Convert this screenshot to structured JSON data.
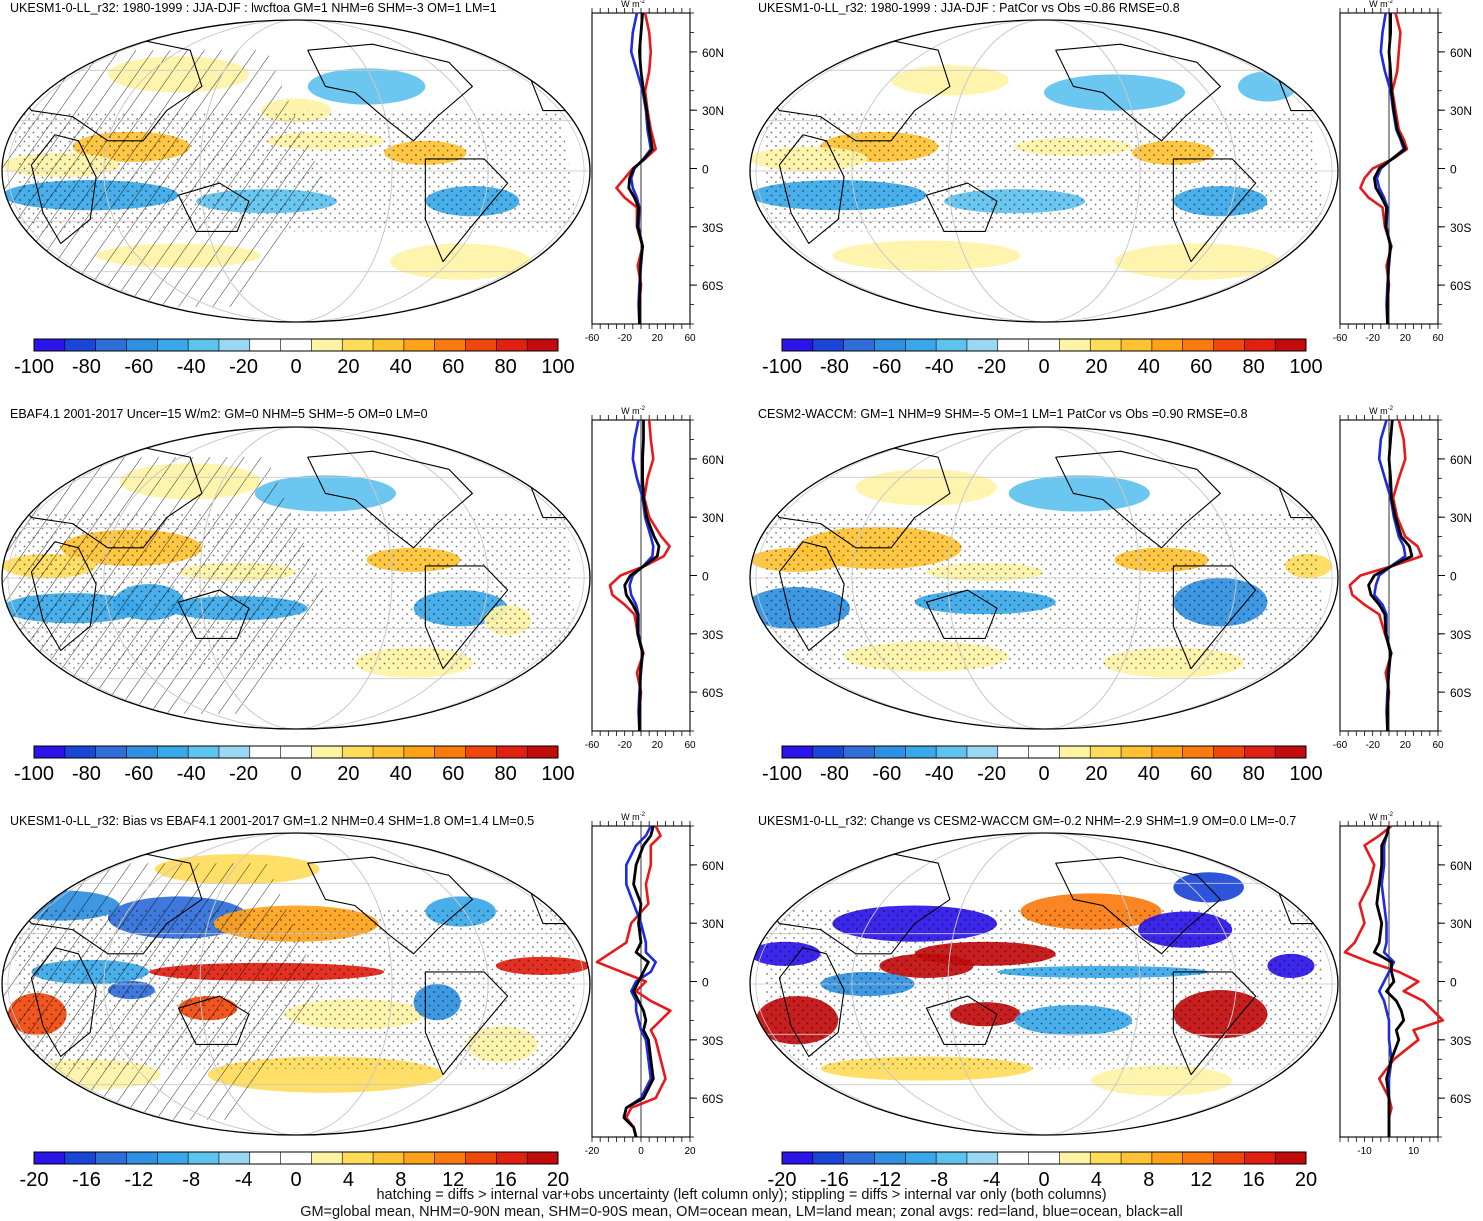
{
  "footer": {
    "line1": "hatching = diffs > internal var+obs uncertainty (left column only); stippling = diffs > internal var only (both columns)",
    "line2": "GM=global mean, NHM=0-90N mean, SHM=0-90S mean, OM=ocean mean, LM=land mean; zonal avgs: red=land, blue=ocean, black=all"
  },
  "units_label": "W m",
  "units_exp": "-2",
  "colors": {
    "land": "#e8191c",
    "ocean": "#1f2be0",
    "all": "#000000",
    "colorbar_ramp": [
      "#2a14e8",
      "#1a46d8",
      "#2f6ed8",
      "#2f8fe0",
      "#3aa8e8",
      "#5ec2ee",
      "#9ad8f2",
      "#ffffff",
      "#ffffff",
      "#fff3a6",
      "#ffdc5a",
      "#ffc234",
      "#ffa21a",
      "#fb7a10",
      "#f0480c",
      "#e02010",
      "#c20c0c"
    ]
  },
  "panels": [
    {
      "id": "p1",
      "title": "UKESM1-0-LL_r32: 1980-1999 : JJA-DJF : lwcftoa GM=1 NHM=6 SHM=-3 OM=1 LM=1",
      "hatching": true,
      "colorbar": {
        "ticks": [
          "-100",
          "-80",
          "-60",
          "-40",
          "-20",
          "0",
          "20",
          "40",
          "60",
          "80",
          "100"
        ],
        "range": [
          -100,
          100
        ]
      },
      "zonal": {
        "x_ticks": [
          "-60",
          "-20",
          "20",
          "60"
        ],
        "x_range": [
          -60,
          60
        ],
        "lat_range": [
          -80,
          80
        ],
        "lat_ticks": [
          {
            "v": 60,
            "label": "60N"
          },
          {
            "v": 30,
            "label": "30N"
          },
          {
            "v": 0,
            "label": "0"
          },
          {
            "v": -30,
            "label": "30S"
          },
          {
            "v": -60,
            "label": "60S"
          }
        ],
        "lat": [
          80,
          70,
          60,
          50,
          40,
          30,
          20,
          15,
          10,
          5,
          0,
          -5,
          -10,
          -15,
          -20,
          -30,
          -40,
          -50,
          -60,
          -70,
          -80
        ],
        "land": [
          5,
          10,
          12,
          10,
          5,
          8,
          12,
          15,
          18,
          5,
          -10,
          -20,
          -30,
          -20,
          -5,
          -5,
          2,
          -4,
          0,
          -2,
          -2
        ],
        "ocean": [
          -5,
          -10,
          -12,
          -5,
          2,
          6,
          8,
          10,
          12,
          3,
          -8,
          -12,
          -10,
          -5,
          -2,
          -3,
          2,
          0,
          -2,
          -3,
          -2
        ],
        "all": [
          2,
          0,
          -2,
          0,
          3,
          7,
          10,
          12,
          14,
          4,
          -9,
          -14,
          -15,
          -8,
          -3,
          -4,
          2,
          -1,
          -1,
          -2,
          -2
        ]
      }
    },
    {
      "id": "p2",
      "title": "UKESM1-0-LL_r32: 1980-1999 : JJA-DJF : PatCor vs Obs =0.86 RMSE=0.8",
      "hatching": false,
      "colorbar": {
        "ticks": [
          "-100",
          "-80",
          "-60",
          "-40",
          "-20",
          "0",
          "20",
          "40",
          "60",
          "80",
          "100"
        ],
        "range": [
          -100,
          100
        ]
      },
      "zonal": {
        "x_ticks": [
          "-60",
          "-20",
          "20",
          "60"
        ],
        "x_range": [
          -60,
          60
        ],
        "lat_range": [
          -80,
          80
        ],
        "lat_ticks": [
          {
            "v": 60,
            "label": "60N"
          },
          {
            "v": 30,
            "label": "30N"
          },
          {
            "v": 0,
            "label": "0"
          },
          {
            "v": -30,
            "label": "30S"
          },
          {
            "v": -60,
            "label": "60S"
          }
        ],
        "lat": [
          80,
          70,
          60,
          50,
          40,
          30,
          20,
          15,
          10,
          5,
          0,
          -5,
          -10,
          -15,
          -20,
          -30,
          -40,
          -50,
          -60,
          -70,
          -80
        ],
        "land": [
          8,
          14,
          12,
          10,
          4,
          8,
          12,
          18,
          22,
          5,
          -20,
          -30,
          -35,
          -25,
          -8,
          -5,
          3,
          -3,
          0,
          -2,
          -2
        ],
        "ocean": [
          -4,
          -8,
          -10,
          -5,
          2,
          5,
          9,
          14,
          18,
          4,
          -10,
          -15,
          -12,
          -6,
          -2,
          -3,
          2,
          0,
          -2,
          -3,
          -2
        ],
        "all": [
          2,
          2,
          0,
          2,
          3,
          6,
          10,
          15,
          20,
          4,
          -12,
          -18,
          -16,
          -9,
          -3,
          -4,
          2,
          -1,
          -1,
          -2,
          -2
        ]
      }
    },
    {
      "id": "p3",
      "title": "EBAF4.1 2001-2017 Uncer=15 W/m2: GM=0 NHM=5 SHM=-5 OM=0 LM=0",
      "hatching": true,
      "colorbar": {
        "ticks": [
          "-100",
          "-80",
          "-60",
          "-40",
          "-20",
          "0",
          "20",
          "40",
          "60",
          "80",
          "100"
        ],
        "range": [
          -100,
          100
        ]
      },
      "zonal": {
        "x_ticks": [
          "-60",
          "-20",
          "20",
          "60"
        ],
        "x_range": [
          -60,
          60
        ],
        "lat_range": [
          -80,
          80
        ],
        "lat_ticks": [
          {
            "v": 60,
            "label": "60N"
          },
          {
            "v": 30,
            "label": "30N"
          },
          {
            "v": 0,
            "label": "0"
          },
          {
            "v": -30,
            "label": "30S"
          },
          {
            "v": -60,
            "label": "60S"
          }
        ],
        "lat": [
          80,
          70,
          60,
          50,
          40,
          30,
          20,
          15,
          10,
          5,
          0,
          -5,
          -10,
          -15,
          -20,
          -30,
          -40,
          -50,
          -60,
          -70,
          -80
        ],
        "land": [
          10,
          12,
          15,
          8,
          4,
          10,
          25,
          35,
          28,
          5,
          -25,
          -38,
          -35,
          -20,
          -8,
          -4,
          3,
          -5,
          0,
          -2,
          -2
        ],
        "ocean": [
          -3,
          -8,
          -10,
          -5,
          2,
          5,
          12,
          15,
          14,
          3,
          -10,
          -14,
          -12,
          -6,
          -3,
          -3,
          2,
          0,
          -2,
          -3,
          -2
        ],
        "all": [
          3,
          3,
          2,
          2,
          3,
          7,
          16,
          22,
          20,
          4,
          -13,
          -20,
          -18,
          -10,
          -4,
          -4,
          2,
          -1,
          -1,
          -2,
          -2
        ]
      }
    },
    {
      "id": "p4",
      "title": "CESM2-WACCM: GM=1 NHM=9 SHM=-5 OM=1 LM=1 PatCor vs Obs =0.90 RMSE=0.8",
      "hatching": false,
      "colorbar": {
        "ticks": [
          "-100",
          "-80",
          "-60",
          "-40",
          "-20",
          "0",
          "20",
          "40",
          "60",
          "80",
          "100"
        ],
        "range": [
          -100,
          100
        ]
      },
      "zonal": {
        "x_ticks": [
          "-60",
          "-20",
          "20",
          "60"
        ],
        "x_range": [
          -60,
          60
        ],
        "lat_range": [
          -80,
          80
        ],
        "lat_ticks": [
          {
            "v": 60,
            "label": "60N"
          },
          {
            "v": 30,
            "label": "30N"
          },
          {
            "v": 0,
            "label": "0"
          },
          {
            "v": -30,
            "label": "30S"
          },
          {
            "v": -60,
            "label": "60S"
          }
        ],
        "lat": [
          80,
          70,
          60,
          50,
          40,
          30,
          20,
          15,
          10,
          5,
          0,
          -5,
          -10,
          -15,
          -20,
          -30,
          -40,
          -50,
          -60,
          -70,
          -80
        ],
        "land": [
          12,
          18,
          20,
          12,
          5,
          10,
          20,
          35,
          40,
          5,
          -35,
          -48,
          -45,
          -30,
          -12,
          -5,
          3,
          -4,
          0,
          -2,
          -2
        ],
        "ocean": [
          -3,
          -10,
          -12,
          -5,
          2,
          6,
          12,
          18,
          20,
          3,
          -12,
          -16,
          -18,
          -8,
          -3,
          -3,
          2,
          0,
          -2,
          -3,
          -2
        ],
        "all": [
          4,
          2,
          0,
          2,
          3,
          8,
          15,
          25,
          28,
          4,
          -18,
          -25,
          -22,
          -12,
          -5,
          -4,
          2,
          -1,
          -1,
          -2,
          -2
        ]
      }
    },
    {
      "id": "p5",
      "title": "UKESM1-0-LL_r32: Bias vs EBAF4.1 2001-2017 GM=1.2 NHM=0.4 SHM=1.8 OM=1.4 LM=0.5",
      "hatching": true,
      "colorbar": {
        "ticks": [
          "-20",
          "-16",
          "-12",
          "-8",
          "-4",
          "0",
          "4",
          "8",
          "12",
          "16",
          "20"
        ],
        "range": [
          -20,
          20
        ]
      },
      "zonal": {
        "x_ticks": [
          "-20",
          "0",
          "20"
        ],
        "x_range": [
          -20,
          20
        ],
        "lat_range": [
          -80,
          80
        ],
        "lat_ticks": [
          {
            "v": 60,
            "label": "60N"
          },
          {
            "v": 30,
            "label": "30N"
          },
          {
            "v": 0,
            "label": "0"
          },
          {
            "v": -30,
            "label": "30S"
          },
          {
            "v": -60,
            "label": "60S"
          }
        ],
        "lat": [
          80,
          75,
          70,
          60,
          50,
          40,
          30,
          20,
          15,
          10,
          5,
          0,
          -5,
          -10,
          -15,
          -20,
          -25,
          -30,
          -40,
          -50,
          -60,
          -65,
          -70,
          -75,
          -80
        ],
        "land": [
          6,
          8,
          4,
          4,
          2,
          3,
          -4,
          -6,
          -12,
          -18,
          -8,
          2,
          -2,
          4,
          12,
          8,
          4,
          6,
          8,
          10,
          6,
          -4,
          -6,
          -3,
          -2
        ],
        "ocean": [
          4,
          2,
          -2,
          -6,
          -6,
          -3,
          0,
          2,
          2,
          6,
          4,
          -2,
          -4,
          -2,
          -2,
          -1,
          0,
          2,
          3,
          4,
          0,
          -6,
          -7,
          -3,
          -2
        ],
        "all": [
          5,
          4,
          1,
          -2,
          -3,
          0,
          -1,
          0,
          -2,
          3,
          1,
          -1,
          -3,
          -1,
          1,
          2,
          1,
          3,
          4,
          5,
          1,
          -6,
          -7,
          -3,
          -2
        ]
      }
    },
    {
      "id": "p6",
      "title": "UKESM1-0-LL_r32: Change vs CESM2-WACCM GM=-0.2 NHM=-2.9 SHM=1.9 OM=0.0 LM=-0.7",
      "hatching": false,
      "colorbar": {
        "ticks": [
          "-20",
          "-16",
          "-12",
          "-8",
          "-4",
          "0",
          "4",
          "8",
          "12",
          "16",
          "20"
        ],
        "range": [
          -20,
          20
        ]
      },
      "zonal": {
        "x_ticks": [
          "-10",
          "10"
        ],
        "x_range": [
          -20,
          20
        ],
        "lat_range": [
          -80,
          80
        ],
        "lat_ticks": [
          {
            "v": 60,
            "label": "60N"
          },
          {
            "v": 30,
            "label": "30N"
          },
          {
            "v": 0,
            "label": "0"
          },
          {
            "v": -30,
            "label": "30S"
          },
          {
            "v": -60,
            "label": "60S"
          }
        ],
        "lat": [
          80,
          75,
          70,
          60,
          50,
          40,
          30,
          20,
          15,
          10,
          5,
          0,
          -5,
          -10,
          -15,
          -20,
          -25,
          -30,
          -40,
          -50,
          -60,
          -65,
          -70,
          -75,
          -80
        ],
        "land": [
          1,
          -4,
          -10,
          -6,
          -8,
          -12,
          -10,
          -14,
          -18,
          -8,
          4,
          12,
          6,
          14,
          18,
          22,
          10,
          12,
          2,
          -4,
          0,
          1,
          0,
          0,
          0
        ],
        "ocean": [
          0,
          -1,
          -2,
          -2,
          -3,
          -2,
          -1,
          -1,
          -2,
          2,
          0,
          -2,
          -4,
          -2,
          -1,
          0,
          0,
          0,
          1,
          0,
          0,
          0,
          0,
          0,
          0
        ],
        "all": [
          0,
          -1,
          -3,
          -3,
          -4,
          -5,
          -3,
          -4,
          -6,
          1,
          1,
          2,
          -1,
          3,
          5,
          6,
          3,
          4,
          1,
          -1,
          0,
          0,
          0,
          0,
          0
        ]
      }
    }
  ]
}
